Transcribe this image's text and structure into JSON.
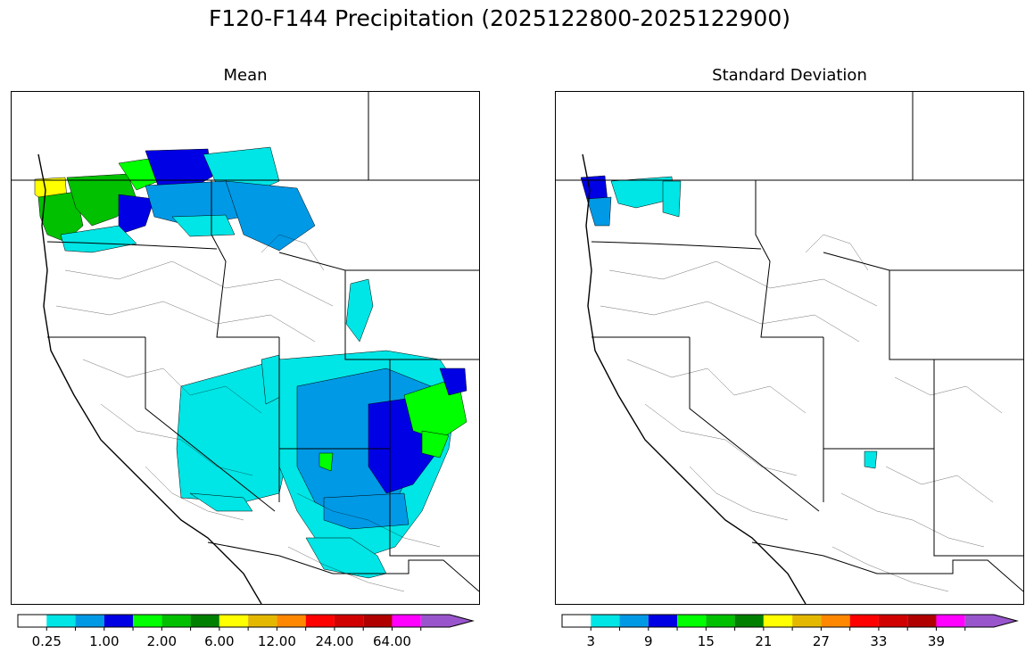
{
  "title": "F120-F144 Precipitation (2025122800-2025122900)",
  "panels": {
    "mean": {
      "title": "Mean",
      "colorbar_ticks": [
        "0.25",
        "1.00",
        "2.00",
        "6.00",
        "12.00",
        "24.00",
        "64.00"
      ],
      "colors": [
        "#ffffff",
        "#00e5e5",
        "#0099e5",
        "#0000e5",
        "#00ff00",
        "#00c000",
        "#008000",
        "#ffff00",
        "#e5b800",
        "#ff8800",
        "#ff0000",
        "#d00000",
        "#b00000",
        "#ff00ff",
        "#9955cc"
      ]
    },
    "std": {
      "title": "Standard Deviation",
      "colorbar_ticks": [
        "3",
        "9",
        "15",
        "21",
        "27",
        "33",
        "39"
      ],
      "colors": [
        "#ffffff",
        "#00e5e5",
        "#0099e5",
        "#0000e5",
        "#00ff00",
        "#00c000",
        "#008000",
        "#ffff00",
        "#e5b800",
        "#ff8800",
        "#ff0000",
        "#d00000",
        "#b00000",
        "#ff00ff",
        "#9955cc"
      ]
    }
  }
}
